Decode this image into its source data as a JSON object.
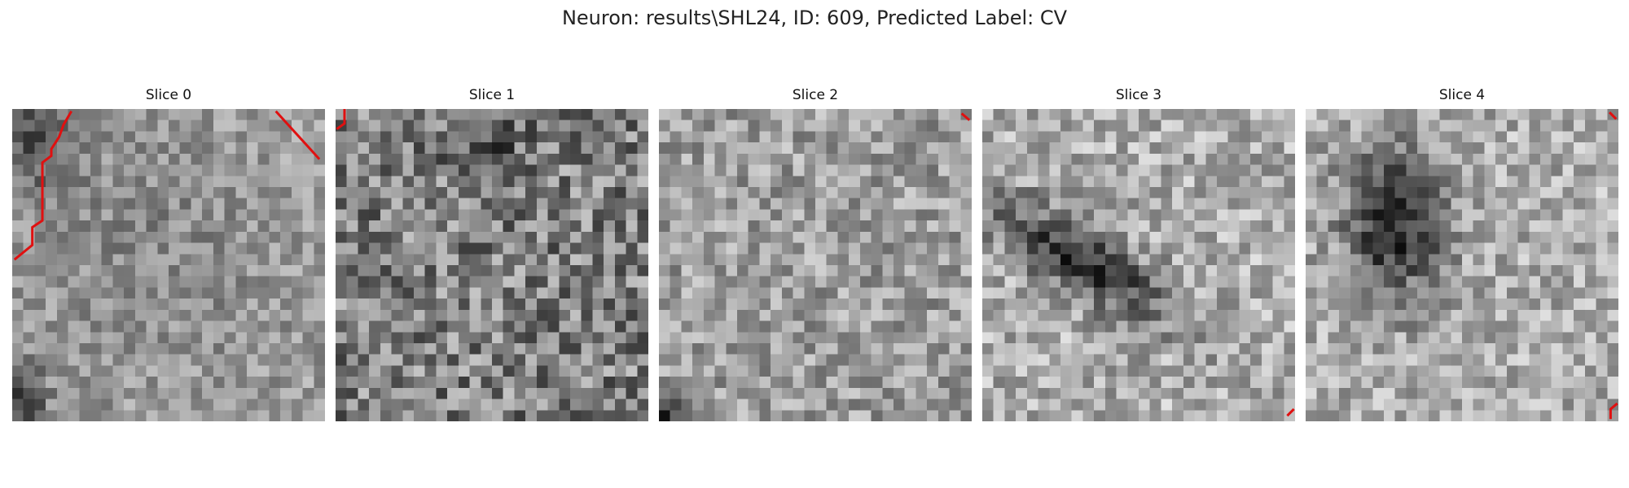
{
  "figure": {
    "title": "Neuron: results\\SHL24, ID: 609, Predicted Label: CV"
  },
  "image_description": {
    "grid_size": 28,
    "colormap": "gray",
    "overlay_color": "#e01010"
  },
  "slices": [
    {
      "title": "Slice 0"
    },
    {
      "title": "Slice 1"
    },
    {
      "title": "Slice 2"
    },
    {
      "title": "Slice 3"
    },
    {
      "title": "Slice 4"
    }
  ]
}
